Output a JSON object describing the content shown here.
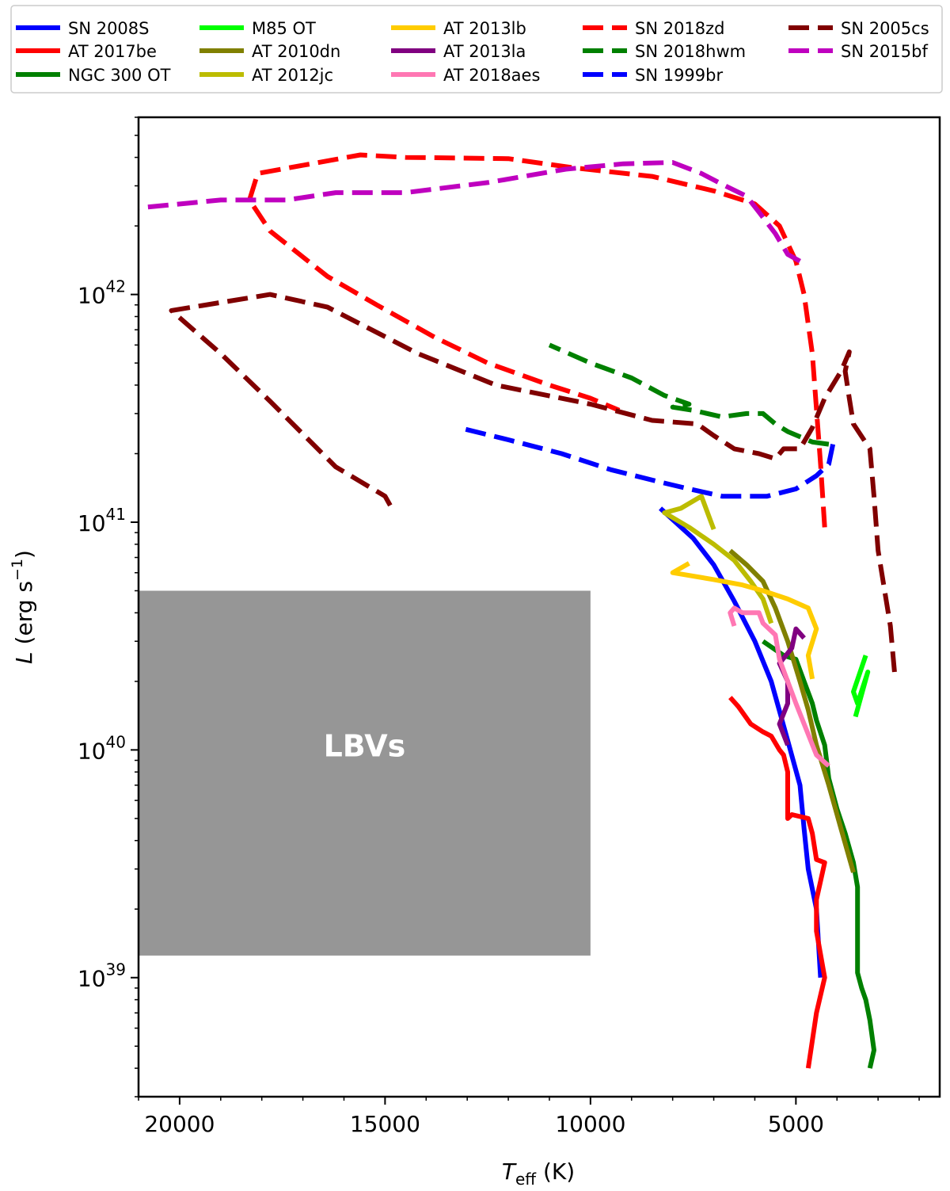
{
  "chart_data": {
    "type": "line",
    "xlabel": {
      "main": "T",
      "sub": "eff",
      "unit": " (K)"
    },
    "ylabel": {
      "main": "L",
      "unit_open": " (erg s",
      "sup": "−1",
      "unit_close": ")"
    },
    "xlim": [
      21000,
      1500
    ],
    "ylim": [
      3e+38,
      6e+42
    ],
    "y_scale": "log",
    "x_ticks": [
      20000,
      15000,
      10000,
      5000
    ],
    "x_tick_labels": [
      "20000",
      "15000",
      "10000",
      "5000"
    ],
    "y_ticks": [
      1e+39,
      1e+40,
      1e+41,
      1e+42
    ],
    "y_tick_labels": [
      {
        "base": "10",
        "exp": "39"
      },
      {
        "base": "10",
        "exp": "40"
      },
      {
        "base": "10",
        "exp": "41"
      },
      {
        "base": "10",
        "exp": "42"
      }
    ],
    "legend_position": "top",
    "grid": false,
    "annotations": [
      {
        "text": "LBVs",
        "x": 15500,
        "y": 1.05e+40
      }
    ],
    "region": {
      "name": "LBVs",
      "x": [
        21000,
        10000
      ],
      "y": [
        1.25e+39,
        5e+40
      ],
      "color": "#969696"
    },
    "series": [
      {
        "name": "SN 2008S",
        "color": "#0000ff",
        "dash": false,
        "points": [
          [
            4400,
            1e+39
          ],
          [
            4500,
            2e+39
          ],
          [
            4700,
            3e+39
          ],
          [
            4800,
            4.5e+39
          ],
          [
            4900,
            7e+39
          ],
          [
            5200,
            1.1e+40
          ],
          [
            5600,
            2e+40
          ],
          [
            6000,
            3e+40
          ],
          [
            6500,
            4.5e+40
          ],
          [
            7000,
            6.5e+40
          ],
          [
            7500,
            8.5e+40
          ],
          [
            8300,
            1.15e+41
          ]
        ]
      },
      {
        "name": "AT 2017be",
        "color": "#ff0000",
        "dash": false,
        "points": [
          [
            4700,
            4e+38
          ],
          [
            4500,
            7e+38
          ],
          [
            4300,
            1e+39
          ],
          [
            4500,
            1.6e+39
          ],
          [
            4500,
            2.2e+39
          ],
          [
            4300,
            3.2e+39
          ],
          [
            4500,
            3.3e+39
          ],
          [
            4600,
            4.3e+39
          ],
          [
            4700,
            5e+39
          ],
          [
            5100,
            5.2e+39
          ],
          [
            5200,
            5e+39
          ],
          [
            5200,
            8e+39
          ],
          [
            5300,
            9.5e+39
          ],
          [
            5400,
            1e+40
          ],
          [
            5600,
            1.15e+40
          ],
          [
            5800,
            1.2e+40
          ],
          [
            6100,
            1.3e+40
          ],
          [
            6400,
            1.55e+40
          ],
          [
            6600,
            1.7e+40
          ]
        ]
      },
      {
        "name": "NGC 300 OT",
        "color": "#008000",
        "dash": false,
        "points": [
          [
            3200,
            4e+38
          ],
          [
            3100,
            4.8e+38
          ],
          [
            3200,
            6.5e+38
          ],
          [
            3300,
            8e+38
          ],
          [
            3400,
            9e+38
          ],
          [
            3500,
            1.05e+39
          ],
          [
            3500,
            1.8e+39
          ],
          [
            3500,
            2.5e+39
          ],
          [
            3600,
            3.2e+39
          ],
          [
            3800,
            4.3e+39
          ],
          [
            4000,
            5.5e+39
          ],
          [
            4200,
            7.5e+39
          ],
          [
            4300,
            1.05e+40
          ],
          [
            4500,
            1.35e+40
          ],
          [
            4600,
            1.6e+40
          ],
          [
            4800,
            2e+40
          ],
          [
            5000,
            2.5e+40
          ],
          [
            5300,
            2.6e+40
          ],
          [
            5800,
            3e+40
          ]
        ]
      },
      {
        "name": "M85 OT",
        "color": "#00ff00",
        "dash": false,
        "points": [
          [
            3550,
            1.4e+40
          ],
          [
            3250,
            2.2e+40
          ],
          [
            3500,
            1.6e+40
          ],
          [
            3600,
            1.8e+40
          ],
          [
            3300,
            2.6e+40
          ]
        ]
      },
      {
        "name": "AT 2010dn",
        "color": "#808000",
        "dash": false,
        "points": [
          [
            3600,
            2.9e+39
          ],
          [
            3900,
            4.5e+39
          ],
          [
            4200,
            7e+39
          ],
          [
            4500,
            1.05e+40
          ],
          [
            4700,
            1.5e+40
          ],
          [
            4900,
            2e+40
          ],
          [
            5200,
            3e+40
          ],
          [
            5500,
            4.2e+40
          ],
          [
            5800,
            5.5e+40
          ],
          [
            6200,
            6.5e+40
          ],
          [
            6600,
            7.5e+40
          ]
        ]
      },
      {
        "name": "AT 2012jc",
        "color": "#bcbc00",
        "dash": false,
        "points": [
          [
            7000,
            9.3e+40
          ],
          [
            7300,
            1.3e+41
          ],
          [
            7800,
            1.15e+41
          ],
          [
            8200,
            1.1e+41
          ],
          [
            7600,
            9.5e+40
          ],
          [
            7000,
            8e+40
          ],
          [
            6500,
            6.8e+40
          ],
          [
            6100,
            5.5e+40
          ],
          [
            5800,
            4.6e+40
          ],
          [
            5600,
            3.6e+40
          ]
        ]
      },
      {
        "name": "AT 2013lb",
        "color": "#ffcc00",
        "dash": false,
        "points": [
          [
            4600,
            2.05e+40
          ],
          [
            4700,
            2.6e+40
          ],
          [
            4500,
            3.4e+40
          ],
          [
            4700,
            4.2e+40
          ],
          [
            5200,
            4.6e+40
          ],
          [
            5800,
            5e+40
          ],
          [
            6300,
            5.3e+40
          ],
          [
            7000,
            5.6e+40
          ],
          [
            8000,
            6e+40
          ],
          [
            7600,
            6.6e+40
          ]
        ]
      },
      {
        "name": "AT 2013la",
        "color": "#800080",
        "dash": false,
        "points": [
          [
            5200,
            1.05e+40
          ],
          [
            5400,
            1.3e+40
          ],
          [
            5200,
            1.6e+40
          ],
          [
            5200,
            2e+40
          ],
          [
            5400,
            2.4e+40
          ],
          [
            5100,
            2.8e+40
          ],
          [
            5000,
            3.4e+40
          ],
          [
            4800,
            3.1e+40
          ]
        ]
      },
      {
        "name": "AT 2018aes",
        "color": "#ff77b3",
        "dash": false,
        "points": [
          [
            4200,
            8.5e+39
          ],
          [
            4500,
            9.5e+39
          ],
          [
            4800,
            1.3e+40
          ],
          [
            5000,
            1.6e+40
          ],
          [
            5200,
            2e+40
          ],
          [
            5400,
            2.5e+40
          ],
          [
            5500,
            3.2e+40
          ],
          [
            5800,
            3.6e+40
          ],
          [
            5900,
            4e+40
          ],
          [
            6300,
            4e+40
          ],
          [
            6500,
            4.2e+40
          ],
          [
            6600,
            4e+40
          ],
          [
            6500,
            3.5e+40
          ]
        ]
      },
      {
        "name": "SN 2018zd",
        "color": "#ff0000",
        "dash": true,
        "points": [
          [
            4300,
            9.5e+40
          ],
          [
            4400,
            1.8e+41
          ],
          [
            4600,
            5.5e+41
          ],
          [
            4800,
            1e+42
          ],
          [
            5000,
            1.4e+42
          ],
          [
            5400,
            2e+42
          ],
          [
            6000,
            2.5e+42
          ],
          [
            7000,
            2.85e+42
          ],
          [
            8500,
            3.3e+42
          ],
          [
            10400,
            3.6e+42
          ],
          [
            12000,
            3.95e+42
          ],
          [
            14500,
            4e+42
          ],
          [
            15600,
            4.1e+42
          ],
          [
            18100,
            3.4e+42
          ],
          [
            18300,
            2.6e+42
          ],
          [
            17800,
            1.9e+42
          ],
          [
            16400,
            1.2e+42
          ],
          [
            15200,
            9e+41
          ],
          [
            13800,
            6.5e+41
          ],
          [
            12500,
            5e+41
          ],
          [
            11000,
            4e+41
          ],
          [
            10000,
            3.5e+41
          ],
          [
            9300,
            3.1e+41
          ]
        ]
      },
      {
        "name": "SN 2018hwm",
        "color": "#008000",
        "dash": true,
        "points": [
          [
            4200,
            2.2e+41
          ],
          [
            4600,
            2.25e+41
          ],
          [
            5200,
            2.5e+41
          ],
          [
            5500,
            2.7e+41
          ],
          [
            5800,
            3e+41
          ],
          [
            6200,
            3e+41
          ],
          [
            6800,
            2.9e+41
          ],
          [
            7500,
            3.1e+41
          ],
          [
            8000,
            3.2e+41
          ],
          [
            7600,
            3.3e+41
          ],
          [
            8200,
            3.6e+41
          ],
          [
            9000,
            4.3e+41
          ],
          [
            10000,
            5e+41
          ],
          [
            11000,
            6e+41
          ]
        ]
      },
      {
        "name": "SN 1999br",
        "color": "#0000ff",
        "dash": true,
        "points": [
          [
            4100,
            2.2e+41
          ],
          [
            4200,
            1.8e+41
          ],
          [
            4500,
            1.6e+41
          ],
          [
            5000,
            1.4e+41
          ],
          [
            5700,
            1.3e+41
          ],
          [
            6800,
            1.3e+41
          ],
          [
            7600,
            1.4e+41
          ],
          [
            8300,
            1.5e+41
          ],
          [
            9500,
            1.7e+41
          ],
          [
            10700,
            2e+41
          ],
          [
            12000,
            2.3e+41
          ],
          [
            13200,
            2.6e+41
          ]
        ]
      },
      {
        "name": "SN 2005cs",
        "color": "#800000",
        "dash": true,
        "points": [
          [
            2600,
            2.2e+40
          ],
          [
            2700,
            3.5e+40
          ],
          [
            3000,
            7.5e+40
          ],
          [
            3100,
            1.3e+41
          ],
          [
            3200,
            2.1e+41
          ],
          [
            3600,
            2.7e+41
          ],
          [
            3700,
            3.5e+41
          ],
          [
            3800,
            4.6e+41
          ],
          [
            3700,
            5.6e+41
          ],
          [
            3900,
            4.6e+41
          ],
          [
            4300,
            3.5e+41
          ],
          [
            4600,
            2.6e+41
          ],
          [
            4900,
            2.1e+41
          ],
          [
            5300,
            2.1e+41
          ],
          [
            5500,
            1.9e+41
          ],
          [
            5900,
            2e+41
          ],
          [
            6500,
            2.1e+41
          ],
          [
            7000,
            2.4e+41
          ],
          [
            7400,
            2.7e+41
          ],
          [
            8500,
            2.8e+41
          ],
          [
            10000,
            3.3e+41
          ],
          [
            12300,
            4e+41
          ],
          [
            14200,
            5.5e+41
          ],
          [
            16400,
            8.8e+41
          ],
          [
            17800,
            1e+42
          ],
          [
            20200,
            8.5e+41
          ],
          [
            19000,
            5.5e+41
          ],
          [
            17800,
            3.4e+41
          ],
          [
            16200,
            1.75e+41
          ],
          [
            15000,
            1.3e+41
          ],
          [
            14800,
            1.12e+41
          ]
        ]
      },
      {
        "name": "SN 2015bf",
        "color": "#bf00bf",
        "dash": true,
        "points": [
          [
            4900,
            1.4e+42
          ],
          [
            5200,
            1.5e+42
          ],
          [
            5500,
            1.85e+42
          ],
          [
            5900,
            2.3e+42
          ],
          [
            6200,
            2.7e+42
          ],
          [
            6800,
            3.05e+42
          ],
          [
            7300,
            3.4e+42
          ],
          [
            8000,
            3.8e+42
          ],
          [
            9200,
            3.75e+42
          ],
          [
            10600,
            3.55e+42
          ],
          [
            12500,
            3.1e+42
          ],
          [
            14500,
            2.8e+42
          ],
          [
            16200,
            2.8e+42
          ],
          [
            17400,
            2.6e+42
          ],
          [
            19000,
            2.6e+42
          ],
          [
            21000,
            2.4e+42
          ]
        ]
      }
    ]
  }
}
